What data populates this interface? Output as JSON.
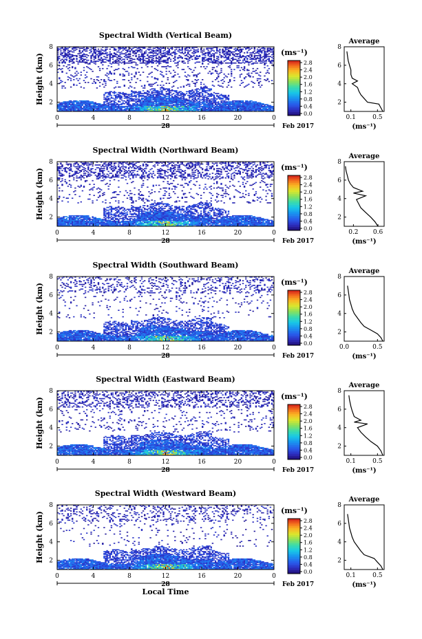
{
  "chart_data": {
    "type": "heatmap",
    "shared": {
      "x_ticks": [
        "0",
        "4",
        "8",
        "12",
        "16",
        "20",
        "0"
      ],
      "x_range": [
        0,
        24
      ],
      "y_ticks": [
        "2",
        "4",
        "6",
        "8"
      ],
      "y_range": [
        1,
        8
      ],
      "ylabel": "Height (km)",
      "date_marker": "28",
      "date_label": "Feb 2017",
      "xlabel": "Local Time",
      "colorbar_title": "(ms⁻¹)",
      "colorbar_ticks": [
        "0.0",
        "0.4",
        "0.8",
        "1.2",
        "1.6",
        "2.0",
        "2.4",
        "2.8"
      ],
      "colorbar_range": [
        0,
        3.0
      ],
      "avg_title": "Average",
      "avg_unit": "(ms⁻¹)",
      "avg_y_ticks": [
        "2",
        "4",
        "6",
        "8"
      ],
      "colors": {
        "scale": [
          "#2a1a8a",
          "#3a43c8",
          "#2f7ef0",
          "#1ab7f2",
          "#2fd3c2",
          "#7fe07a",
          "#d8e836",
          "#fbbf2a",
          "#f7761f",
          "#d7261a"
        ],
        "low_band": "#3c4ec4",
        "noise": "#3d4fba"
      }
    },
    "panels": [
      {
        "title": "Spectral Width (Vertical Beam)",
        "avg_x_ticks": [
          "0.1",
          "0.5"
        ],
        "avg_xlim": [
          0,
          0.6
        ],
        "avg_profile": [
          [
            0.58,
            1.0
          ],
          [
            0.55,
            1.4
          ],
          [
            0.52,
            1.8
          ],
          [
            0.35,
            2.0
          ],
          [
            0.3,
            2.4
          ],
          [
            0.25,
            2.8
          ],
          [
            0.22,
            3.2
          ],
          [
            0.2,
            3.6
          ],
          [
            0.12,
            4.0
          ],
          [
            0.2,
            4.3
          ],
          [
            0.12,
            4.6
          ],
          [
            0.1,
            5.0
          ],
          [
            0.1,
            5.5
          ],
          [
            0.08,
            6.0
          ],
          [
            0.06,
            6.5
          ],
          [
            0.05,
            7.0
          ],
          [
            0.04,
            7.5
          ]
        ],
        "upper_cover": 0.45,
        "hotspot_intensity": 2.2
      },
      {
        "title": "Spectral Width (Northward Beam)",
        "avg_x_ticks": [
          "0.2",
          "0.6"
        ],
        "avg_xlim": [
          0.05,
          0.7
        ],
        "avg_profile": [
          [
            0.6,
            1.0
          ],
          [
            0.55,
            1.5
          ],
          [
            0.48,
            2.0
          ],
          [
            0.4,
            2.5
          ],
          [
            0.32,
            3.0
          ],
          [
            0.28,
            3.5
          ],
          [
            0.25,
            3.9
          ],
          [
            0.4,
            4.3
          ],
          [
            0.2,
            4.6
          ],
          [
            0.35,
            4.8
          ],
          [
            0.2,
            5.2
          ],
          [
            0.15,
            5.6
          ],
          [
            0.12,
            6.0
          ],
          [
            0.1,
            6.5
          ],
          [
            0.08,
            7.0
          ],
          [
            0.07,
            7.5
          ]
        ],
        "upper_cover": 0.35,
        "hotspot_intensity": 2.0
      },
      {
        "title": "Spectral Width (Southward Beam)",
        "avg_x_ticks": [
          "0.0",
          "0.5"
        ],
        "avg_xlim": [
          0,
          0.6
        ],
        "avg_profile": [
          [
            0.58,
            1.0
          ],
          [
            0.55,
            1.4
          ],
          [
            0.5,
            1.8
          ],
          [
            0.4,
            2.2
          ],
          [
            0.3,
            2.6
          ],
          [
            0.25,
            3.0
          ],
          [
            0.2,
            3.5
          ],
          [
            0.15,
            4.0
          ],
          [
            0.12,
            4.5
          ],
          [
            0.1,
            5.0
          ],
          [
            0.08,
            5.5
          ],
          [
            0.07,
            6.0
          ],
          [
            0.06,
            6.5
          ],
          [
            0.05,
            7.0
          ]
        ],
        "upper_cover": 0.2,
        "hotspot_intensity": 2.1
      },
      {
        "title": "Spectral Width (Eastward Beam)",
        "avg_x_ticks": [
          "0.1",
          "0.5"
        ],
        "avg_xlim": [
          0,
          0.6
        ],
        "avg_profile": [
          [
            0.58,
            1.0
          ],
          [
            0.55,
            1.5
          ],
          [
            0.5,
            2.0
          ],
          [
            0.4,
            2.5
          ],
          [
            0.32,
            3.0
          ],
          [
            0.25,
            3.5
          ],
          [
            0.2,
            4.0
          ],
          [
            0.35,
            4.4
          ],
          [
            0.15,
            4.6
          ],
          [
            0.25,
            4.8
          ],
          [
            0.15,
            5.2
          ],
          [
            0.12,
            5.8
          ],
          [
            0.1,
            6.3
          ],
          [
            0.08,
            7.0
          ],
          [
            0.07,
            7.5
          ]
        ],
        "upper_cover": 0.3,
        "hotspot_intensity": 2.3
      },
      {
        "title": "Spectral Width (Westward Beam)",
        "avg_x_ticks": [
          "0.1",
          "0.5"
        ],
        "avg_xlim": [
          0,
          0.6
        ],
        "avg_profile": [
          [
            0.58,
            1.0
          ],
          [
            0.55,
            1.4
          ],
          [
            0.5,
            1.8
          ],
          [
            0.45,
            2.2
          ],
          [
            0.3,
            2.6
          ],
          [
            0.25,
            3.0
          ],
          [
            0.2,
            3.5
          ],
          [
            0.15,
            4.0
          ],
          [
            0.12,
            4.5
          ],
          [
            0.1,
            5.0
          ],
          [
            0.08,
            5.5
          ],
          [
            0.07,
            6.0
          ],
          [
            0.06,
            6.5
          ],
          [
            0.05,
            7.0
          ]
        ],
        "upper_cover": 0.18,
        "hotspot_intensity": 2.2
      }
    ]
  }
}
